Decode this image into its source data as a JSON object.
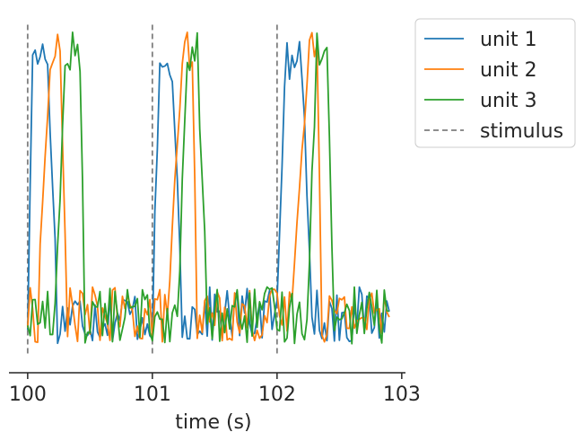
{
  "chart_data": {
    "type": "line",
    "xlabel": "time (s)",
    "ylabel": "",
    "xlim": [
      99.85,
      103.03
    ],
    "ylim": [
      0,
      1
    ],
    "x_ticks": [
      100,
      101,
      102,
      103
    ],
    "x_tick_labels": [
      "100",
      "101",
      "102",
      "103"
    ],
    "y_axis_visible": false,
    "grid": false,
    "legend_position": "outside-top-right",
    "stimulus": {
      "name": "stimulus",
      "times": [
        100,
        101,
        102
      ],
      "color": "#7f7f7f",
      "dash": "dashed"
    },
    "series": [
      {
        "name": "unit 1",
        "color": "#1f77b4",
        "peak_windows": [
          {
            "start": 100.0,
            "rise": 0.04,
            "plateau": [
              100.05,
              100.16
            ],
            "fall_end": 100.24
          },
          {
            "start": 101.0,
            "rise": 0.06,
            "plateau": [
              101.07,
              101.16
            ],
            "fall_end": 101.24
          },
          {
            "start": 102.0,
            "rise": 0.07,
            "plateau": [
              102.08,
              102.2
            ],
            "fall_end": 102.28
          }
        ],
        "peak_value": 0.93
      },
      {
        "name": "unit 2",
        "color": "#ff7f0e",
        "peak_windows": [
          {
            "start": 100.08,
            "rise": 0.1,
            "plateau": [
              100.18,
              100.26
            ],
            "fall_end": 100.32
          },
          {
            "start": 101.12,
            "rise": 0.12,
            "plateau": [
              101.24,
              101.32
            ],
            "fall_end": 101.36
          },
          {
            "start": 102.1,
            "rise": 0.16,
            "plateau": [
              102.24,
              102.32
            ],
            "fall_end": 102.36
          }
        ],
        "peak_value": 0.96
      },
      {
        "name": "unit 3",
        "color": "#2ca02c",
        "peak_windows": [
          {
            "start": 100.22,
            "rise": 0.08,
            "plateau": [
              100.3,
              100.42
            ],
            "fall_end": 100.46
          },
          {
            "start": 101.2,
            "rise": 0.08,
            "plateau": [
              101.28,
              101.36
            ],
            "fall_end": 101.44
          },
          {
            "start": 102.24,
            "rise": 0.08,
            "plateau": [
              102.32,
              102.4
            ],
            "fall_end": 102.46
          }
        ],
        "peak_value": 0.96
      }
    ]
  }
}
